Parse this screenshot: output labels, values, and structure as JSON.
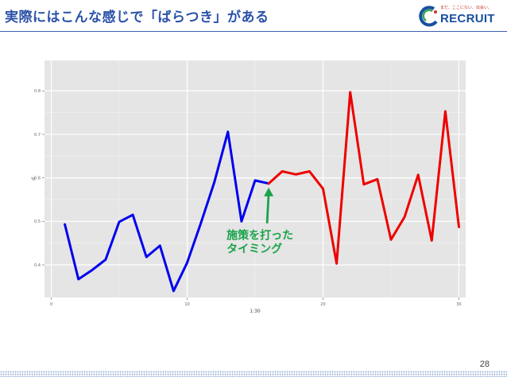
{
  "slide": {
    "title": "実際にはこんな感じで「ばらつき」がある",
    "page_number": "28"
  },
  "logo": {
    "tagline": "まだ、ここにない、出会い。",
    "wordmark": "RECRUIT",
    "colors": {
      "blue": "#1a4fa0",
      "green": "#3aa655",
      "red": "#c0392b"
    }
  },
  "colors": {
    "title": "#2b52a8",
    "panel": "#e5e5e5",
    "grid": "#ffffff",
    "before": "#0000ee",
    "after": "#ee0000",
    "arrow": "#1aa34a",
    "annotation": "#1aa34a"
  },
  "chart_data": {
    "type": "line",
    "xlabel": "1:30",
    "ylabel": "d",
    "xlim": [
      -0.5,
      30.5
    ],
    "ylim": [
      0.325,
      0.87
    ],
    "x_ticks": [
      0,
      10,
      20,
      30
    ],
    "y_ticks": [
      0.4,
      0.5,
      0.6,
      0.7,
      0.8
    ],
    "x_tick_labels": [
      "0",
      "10",
      "20",
      "30"
    ],
    "y_tick_labels": [
      "0.4",
      "0.5",
      "0.6",
      "0.7",
      "0.8"
    ],
    "grid": true,
    "series": [
      {
        "color": "#0000ee",
        "x": [
          1,
          2,
          3,
          4,
          5,
          6,
          7,
          8,
          9,
          10,
          11,
          12,
          13,
          14,
          15,
          16
        ],
        "y": [
          0.493,
          0.367,
          0.388,
          0.412,
          0.499,
          0.515,
          0.418,
          0.444,
          0.34,
          0.405,
          0.495,
          0.59,
          0.706,
          0.5,
          0.594,
          0.587
        ]
      },
      {
        "color": "#ee0000",
        "x": [
          16,
          17,
          18,
          19,
          20,
          21,
          22,
          23,
          24,
          25,
          26,
          27,
          28,
          29,
          30
        ],
        "y": [
          0.587,
          0.615,
          0.608,
          0.615,
          0.575,
          0.403,
          0.797,
          0.585,
          0.597,
          0.458,
          0.51,
          0.607,
          0.456,
          0.753,
          0.487
        ]
      }
    ],
    "annotation": {
      "text_lines": [
        "施策を打った",
        "タイミング"
      ],
      "x": 16,
      "y": 0.587
    }
  }
}
